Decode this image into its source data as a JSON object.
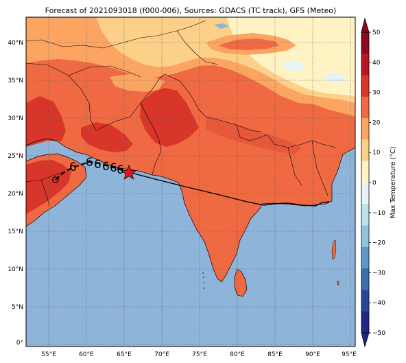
{
  "title": "Forecast of 2021093018 (f000-006), Sources: GDACS (TC track), GFS (Meteo)",
  "colorbar": {
    "label": "Max Temperature (°C)",
    "ticks": [
      "50",
      "40",
      "30",
      "20",
      "10",
      "0",
      "−10",
      "−20",
      "−30",
      "−40",
      "−50"
    ],
    "colors": [
      "#8b0a1f",
      "#b81526",
      "#d8362b",
      "#ef6a43",
      "#fca563",
      "#fdd08a",
      "#fff3c4",
      "#e6f4f7",
      "#bde0ea",
      "#93c4dc",
      "#5e98c7",
      "#3b6fb0",
      "#2b4597",
      "#232488"
    ]
  },
  "x_ticks": [
    "55°E",
    "60°E",
    "65°E",
    "70°E",
    "75°E",
    "80°E",
    "85°E",
    "90°E",
    "95°E"
  ],
  "y_ticks": [
    "40°N",
    "35°N",
    "30°N",
    "25°N",
    "20°N",
    "15°N",
    "10°N",
    "5°N",
    "0°"
  ],
  "colors": {
    "ocean": "#8fb4d9",
    "hot": "#ef6a43",
    "very_hot": "#d8362b",
    "warm": "#fca563",
    "mild": "#fdd08a",
    "cool": "#fff3c4",
    "marker": "#e8141c"
  },
  "track": {
    "storm_symbol": "6",
    "current_marker": "star-icon",
    "past_marker": "circle-icon"
  }
}
